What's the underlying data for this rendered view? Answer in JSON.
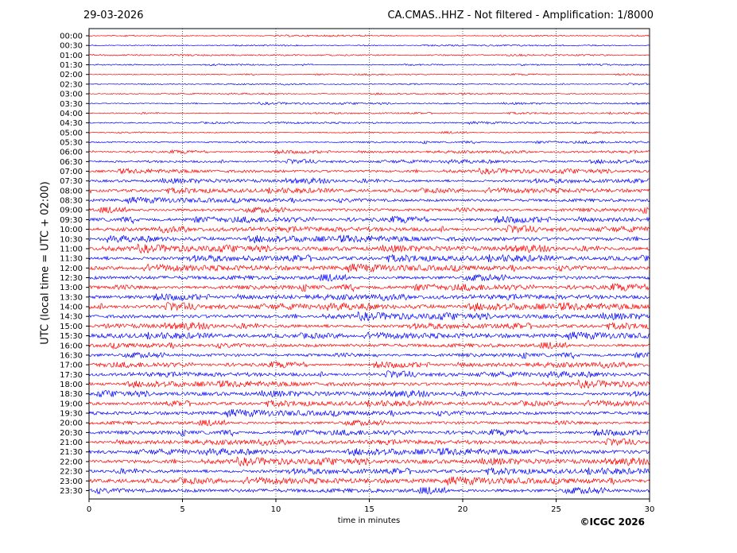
{
  "header": {
    "date": "29-03-2026",
    "title": "CA.CMAS..HHZ - Not filtered - Amplification: 1/8000"
  },
  "footer": {
    "copyright": "©ICGC 2026"
  },
  "chart_data": {
    "type": "line",
    "title": "CA.CMAS..HHZ - Not filtered - Amplification: 1/8000",
    "xlabel": "time in minutes",
    "ylabel": "UTC (local time = UTC + 02:00)",
    "xlim": [
      0,
      30
    ],
    "xticks": [
      "0",
      "5",
      "10",
      "15",
      "20",
      "25",
      "30"
    ],
    "grid": "vertical dotted at each 5 minutes",
    "trace_colors": [
      "#ff0000",
      "#0000ff"
    ],
    "rows": [
      "00:00",
      "00:30",
      "01:00",
      "01:30",
      "02:00",
      "02:30",
      "03:00",
      "03:30",
      "04:00",
      "04:30",
      "05:00",
      "05:30",
      "06:00",
      "06:30",
      "07:00",
      "07:30",
      "08:00",
      "08:30",
      "09:00",
      "09:30",
      "10:00",
      "10:30",
      "11:00",
      "11:30",
      "12:00",
      "12:30",
      "13:00",
      "13:30",
      "14:00",
      "14:30",
      "15:00",
      "15:30",
      "16:00",
      "16:30",
      "17:00",
      "17:30",
      "18:00",
      "18:30",
      "19:00",
      "19:30",
      "20:00",
      "20:30",
      "21:00",
      "21:30",
      "22:00",
      "22:30",
      "23:00",
      "23:30"
    ],
    "relative_amplitude": [
      0.15,
      0.15,
      0.15,
      0.15,
      0.15,
      0.15,
      0.15,
      0.18,
      0.18,
      0.2,
      0.2,
      0.25,
      0.3,
      0.35,
      0.4,
      0.45,
      0.5,
      0.5,
      0.55,
      0.6,
      0.6,
      0.6,
      0.6,
      0.65,
      0.65,
      0.65,
      0.65,
      0.6,
      0.65,
      0.6,
      0.6,
      0.6,
      0.6,
      0.55,
      0.55,
      0.55,
      0.55,
      0.55,
      0.55,
      0.6,
      0.55,
      0.55,
      0.55,
      0.6,
      0.6,
      0.6,
      0.65,
      0.65
    ]
  }
}
